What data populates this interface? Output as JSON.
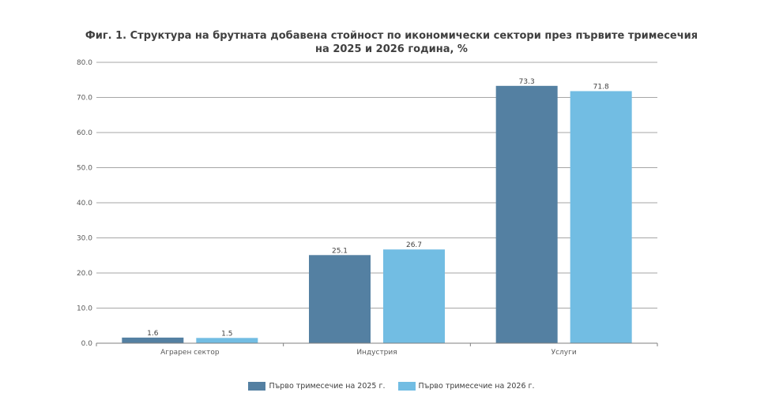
{
  "chart_data": {
    "type": "bar",
    "title_line1": "Фиг. 1. Структура на брутната добавена стойност по икономически сектори през първите тримесечия",
    "title_line2": "на 2025 и 2026 година, %",
    "categories": [
      "Аграрен сектор",
      "Индустрия",
      "Услуги"
    ],
    "series": [
      {
        "name": "Първо тримесечие на 2025 г.",
        "values": [
          1.6,
          25.1,
          73.3
        ],
        "labels": [
          "1.6",
          "25.1",
          "73.3"
        ],
        "color": "#5480a2"
      },
      {
        "name": "Първо тримесечие на 2026 г.",
        "values": [
          1.5,
          26.7,
          71.8
        ],
        "labels": [
          "1.5",
          "26.7",
          "71.8"
        ],
        "color": "#72bde3"
      }
    ],
    "ylim": [
      0,
      80
    ],
    "yticks": [
      "0.0",
      "10.0",
      "20.0",
      "30.0",
      "40.0",
      "50.0",
      "60.0",
      "70.0",
      "80.0"
    ],
    "grid": true,
    "legend_position": "bottom"
  }
}
